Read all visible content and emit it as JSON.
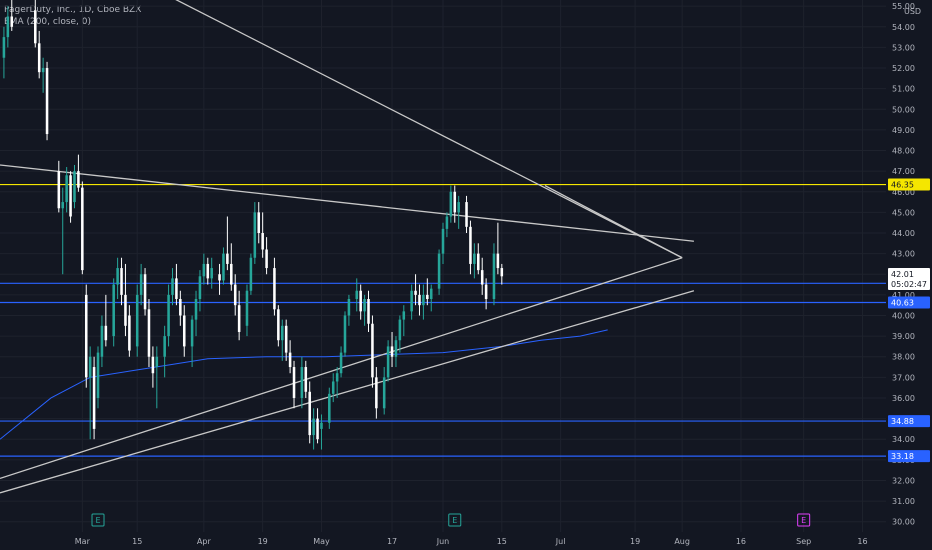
{
  "header": {
    "symbol_line": "PagerDuty, Inc., 1D, Cboe BZX",
    "indicator_line": "EMA (200, close, 0)"
  },
  "colors": {
    "background": "#131722",
    "grid": "#1e222d",
    "bull_candle": "#ffffff",
    "bear_candle": "#ffffff",
    "trendline": "#c8c8c8",
    "horizontal_level_blue": "#2962ff",
    "horizontal_level_yellow": "#f5e600",
    "ema": "#2962ff",
    "current_price_label": "#ffffff",
    "earnings_green": "#26a69a",
    "event_purple": "#e040fb"
  },
  "chart_data": {
    "type": "candlestick",
    "title": "PagerDuty, Inc., 1D, Cboe BZX",
    "currency": "USD",
    "ylim": [
      29.5,
      55.3
    ],
    "y_ticks": [
      30,
      31,
      32,
      33,
      34,
      35,
      36,
      37,
      38,
      39,
      40,
      41,
      42,
      43,
      44,
      45,
      46,
      47,
      48,
      49,
      50,
      51,
      52,
      53,
      54,
      55
    ],
    "y_tick_labels": [
      "30.00",
      "31.00",
      "32.00",
      "33.00",
      "34.00",
      "35.00",
      "36.00",
      "37.00",
      "38.00",
      "39.00",
      "40.00",
      "41.00",
      "42.00",
      "43.00",
      "44.00",
      "45.00",
      "46.00",
      "47.00",
      "48.00",
      "49.00",
      "50.00",
      "51.00",
      "52.00",
      "53.00",
      "54.00",
      "55.00"
    ],
    "x_tick_labels": [
      "Mar",
      "15",
      "Apr",
      "19",
      "May",
      "17",
      "Jun",
      "15",
      "Jul",
      "19",
      "Aug",
      "16",
      "Sep",
      "16"
    ],
    "x_tick_days": [
      8,
      22,
      39,
      54,
      69,
      87,
      100,
      115,
      130,
      149,
      161,
      176,
      192,
      207
    ],
    "x_range_days": [
      -13,
      213
    ],
    "horizontal_levels": [
      {
        "price": 46.35,
        "label": "46.35",
        "color": "yellow"
      },
      {
        "price": 41.56,
        "label": "41.56",
        "color": "blue"
      },
      {
        "price": 40.63,
        "label": "40.63",
        "color": "blue"
      },
      {
        "price": 34.88,
        "label": "34.88",
        "color": "blue"
      },
      {
        "price": 33.18,
        "label": "33.18",
        "color": "blue"
      }
    ],
    "current_price": {
      "price": 42.01,
      "label": "42.01",
      "countdown": "05:02:47"
    },
    "trendlines": [
      {
        "from": {
          "day": 30,
          "price": 55.5
        },
        "to": {
          "day": 161,
          "price": 42.8
        }
      },
      {
        "from": {
          "day": 126,
          "price": 46.3
        },
        "to": {
          "day": 161,
          "price": 42.8
        }
      },
      {
        "from": {
          "day": -13,
          "price": 47.3
        },
        "to": {
          "day": 164,
          "price": 43.6
        }
      },
      {
        "from": {
          "day": -13,
          "price": 32.1
        },
        "to": {
          "day": 161,
          "price": 42.8
        }
      },
      {
        "from": {
          "day": -13,
          "price": 31.4
        },
        "to": {
          "day": 164,
          "price": 41.2
        }
      }
    ],
    "ema": [
      {
        "day": -13,
        "v": 34.0
      },
      {
        "day": 0,
        "v": 36.0
      },
      {
        "day": 10,
        "v": 37.0
      },
      {
        "day": 20,
        "v": 37.3
      },
      {
        "day": 30,
        "v": 37.6
      },
      {
        "day": 40,
        "v": 37.9
      },
      {
        "day": 55,
        "v": 38.0
      },
      {
        "day": 70,
        "v": 38.0
      },
      {
        "day": 85,
        "v": 38.1
      },
      {
        "day": 100,
        "v": 38.2
      },
      {
        "day": 115,
        "v": 38.5
      },
      {
        "day": 125,
        "v": 38.8
      },
      {
        "day": 135,
        "v": 39.0
      },
      {
        "day": 142,
        "v": 39.3
      }
    ],
    "candles": [
      {
        "day": -12,
        "o": 52.5,
        "h": 54.0,
        "l": 51.5,
        "c": 53.5
      },
      {
        "day": -11,
        "o": 53.5,
        "h": 55.0,
        "l": 53.0,
        "c": 54.5
      },
      {
        "day": -10,
        "o": 54.5,
        "h": 55.3,
        "l": 53.8,
        "c": 54.0
      },
      {
        "day": -4,
        "o": 54.8,
        "h": 55.3,
        "l": 53.0,
        "c": 53.2
      },
      {
        "day": -3,
        "o": 53.2,
        "h": 53.8,
        "l": 51.5,
        "c": 51.8
      },
      {
        "day": -2,
        "o": 51.8,
        "h": 52.5,
        "l": 50.8,
        "c": 52.0
      },
      {
        "day": -1,
        "o": 52.0,
        "h": 52.3,
        "l": 48.5,
        "c": 48.8
      },
      {
        "day": 2,
        "o": 47.0,
        "h": 47.5,
        "l": 45.0,
        "c": 45.2
      },
      {
        "day": 3,
        "o": 45.2,
        "h": 46.2,
        "l": 42.0,
        "c": 45.5
      },
      {
        "day": 4,
        "o": 45.5,
        "h": 47.2,
        "l": 45.0,
        "c": 46.8
      },
      {
        "day": 5,
        "o": 46.8,
        "h": 47.0,
        "l": 44.5,
        "c": 44.8
      },
      {
        "day": 6,
        "o": 45.5,
        "h": 47.3,
        "l": 45.2,
        "c": 47.0
      },
      {
        "day": 7,
        "o": 47.0,
        "h": 47.8,
        "l": 46.0,
        "c": 46.2
      },
      {
        "day": 8,
        "o": 46.2,
        "h": 46.5,
        "l": 42.0,
        "c": 42.2
      },
      {
        "day": 9,
        "o": 41.0,
        "h": 41.5,
        "l": 36.5,
        "c": 37.0
      },
      {
        "day": 10,
        "o": 37.0,
        "h": 38.5,
        "l": 34.0,
        "c": 38.0
      },
      {
        "day": 11,
        "o": 37.5,
        "h": 38.0,
        "l": 34.0,
        "c": 34.5
      },
      {
        "day": 12,
        "o": 36.0,
        "h": 38.5,
        "l": 35.5,
        "c": 38.2
      },
      {
        "day": 13,
        "o": 38.0,
        "h": 40.0,
        "l": 37.5,
        "c": 39.5
      },
      {
        "day": 14,
        "o": 39.5,
        "h": 41.0,
        "l": 38.5,
        "c": 38.8
      },
      {
        "day": 16,
        "o": 39.0,
        "h": 41.8,
        "l": 38.5,
        "c": 41.5
      },
      {
        "day": 17,
        "o": 41.5,
        "h": 42.8,
        "l": 40.8,
        "c": 42.3
      },
      {
        "day": 18,
        "o": 42.3,
        "h": 42.8,
        "l": 40.5,
        "c": 41.0
      },
      {
        "day": 19,
        "o": 41.0,
        "h": 42.5,
        "l": 39.0,
        "c": 39.5
      },
      {
        "day": 20,
        "o": 40.0,
        "h": 40.5,
        "l": 38.0,
        "c": 38.3
      },
      {
        "day": 22,
        "o": 38.5,
        "h": 41.5,
        "l": 38.0,
        "c": 41.0
      },
      {
        "day": 23,
        "o": 41.0,
        "h": 42.5,
        "l": 40.5,
        "c": 42.0
      },
      {
        "day": 24,
        "o": 42.0,
        "h": 42.3,
        "l": 40.0,
        "c": 40.3
      },
      {
        "day": 25,
        "o": 40.3,
        "h": 40.8,
        "l": 37.5,
        "c": 38.0
      },
      {
        "day": 26,
        "o": 38.0,
        "h": 38.5,
        "l": 36.5,
        "c": 37.2
      },
      {
        "day": 27,
        "o": 37.5,
        "h": 38.5,
        "l": 35.5,
        "c": 38.0
      },
      {
        "day": 29,
        "o": 38.0,
        "h": 39.5,
        "l": 37.0,
        "c": 39.0
      },
      {
        "day": 30,
        "o": 39.0,
        "h": 41.5,
        "l": 38.5,
        "c": 41.0
      },
      {
        "day": 31,
        "o": 41.0,
        "h": 42.3,
        "l": 40.5,
        "c": 41.8
      },
      {
        "day": 32,
        "o": 41.8,
        "h": 42.5,
        "l": 40.5,
        "c": 40.8
      },
      {
        "day": 33,
        "o": 40.8,
        "h": 41.2,
        "l": 39.5,
        "c": 40.0
      },
      {
        "day": 34,
        "o": 40.0,
        "h": 40.5,
        "l": 38.0,
        "c": 38.5
      },
      {
        "day": 36,
        "o": 38.5,
        "h": 40.0,
        "l": 37.5,
        "c": 39.8
      },
      {
        "day": 37,
        "o": 39.8,
        "h": 41.2,
        "l": 39.0,
        "c": 40.8
      },
      {
        "day": 38,
        "o": 40.8,
        "h": 42.2,
        "l": 40.2,
        "c": 41.9
      },
      {
        "day": 39,
        "o": 41.9,
        "h": 43.0,
        "l": 41.5,
        "c": 42.5
      },
      {
        "day": 40,
        "o": 42.5,
        "h": 42.8,
        "l": 41.5,
        "c": 41.8
      },
      {
        "day": 41,
        "o": 41.8,
        "h": 42.8,
        "l": 41.3,
        "c": 42.3
      },
      {
        "day": 43,
        "o": 42.0,
        "h": 42.5,
        "l": 41.0,
        "c": 41.7
      },
      {
        "day": 44,
        "o": 41.7,
        "h": 43.3,
        "l": 41.5,
        "c": 43.0
      },
      {
        "day": 45,
        "o": 43.0,
        "h": 44.8,
        "l": 42.2,
        "c": 42.5
      },
      {
        "day": 46,
        "o": 42.5,
        "h": 43.5,
        "l": 41.2,
        "c": 41.5
      },
      {
        "day": 47,
        "o": 41.5,
        "h": 42.0,
        "l": 40.0,
        "c": 40.5
      },
      {
        "day": 48,
        "o": 40.5,
        "h": 41.2,
        "l": 38.8,
        "c": 39.2
      },
      {
        "day": 50,
        "o": 39.5,
        "h": 41.5,
        "l": 39.0,
        "c": 41.2
      },
      {
        "day": 51,
        "o": 41.2,
        "h": 43.0,
        "l": 41.0,
        "c": 42.8
      },
      {
        "day": 52,
        "o": 42.8,
        "h": 45.5,
        "l": 42.5,
        "c": 45.0
      },
      {
        "day": 53,
        "o": 45.0,
        "h": 45.5,
        "l": 43.5,
        "c": 44.0
      },
      {
        "day": 54,
        "o": 44.0,
        "h": 45.0,
        "l": 42.8,
        "c": 43.2
      },
      {
        "day": 55,
        "o": 43.2,
        "h": 43.8,
        "l": 42.0,
        "c": 42.3
      },
      {
        "day": 57,
        "o": 42.3,
        "h": 42.8,
        "l": 40.0,
        "c": 40.3
      },
      {
        "day": 58,
        "o": 40.3,
        "h": 40.5,
        "l": 38.5,
        "c": 38.8
      },
      {
        "day": 59,
        "o": 38.8,
        "h": 39.8,
        "l": 37.8,
        "c": 39.5
      },
      {
        "day": 60,
        "o": 39.5,
        "h": 39.8,
        "l": 37.8,
        "c": 38.2
      },
      {
        "day": 61,
        "o": 38.2,
        "h": 38.8,
        "l": 37.2,
        "c": 37.5
      },
      {
        "day": 62,
        "o": 37.5,
        "h": 37.8,
        "l": 35.5,
        "c": 36.0
      },
      {
        "day": 64,
        "o": 36.0,
        "h": 38.0,
        "l": 35.5,
        "c": 37.5
      },
      {
        "day": 65,
        "o": 37.5,
        "h": 37.8,
        "l": 36.0,
        "c": 36.3
      },
      {
        "day": 66,
        "o": 36.3,
        "h": 36.8,
        "l": 33.8,
        "c": 34.2
      },
      {
        "day": 67,
        "o": 34.2,
        "h": 35.5,
        "l": 33.5,
        "c": 35.0
      },
      {
        "day": 68,
        "o": 35.0,
        "h": 35.5,
        "l": 33.8,
        "c": 34.0
      },
      {
        "day": 69,
        "o": 34.5,
        "h": 35.2,
        "l": 33.5,
        "c": 34.8
      },
      {
        "day": 71,
        "o": 34.8,
        "h": 36.5,
        "l": 34.5,
        "c": 36.2
      },
      {
        "day": 72,
        "o": 36.2,
        "h": 37.2,
        "l": 35.8,
        "c": 36.8
      },
      {
        "day": 73,
        "o": 36.8,
        "h": 37.5,
        "l": 36.0,
        "c": 37.2
      },
      {
        "day": 74,
        "o": 37.2,
        "h": 38.5,
        "l": 37.0,
        "c": 38.2
      },
      {
        "day": 75,
        "o": 38.2,
        "h": 40.2,
        "l": 38.0,
        "c": 40.0
      },
      {
        "day": 76,
        "o": 40.0,
        "h": 41.0,
        "l": 39.5,
        "c": 40.8
      },
      {
        "day": 78,
        "o": 40.8,
        "h": 41.8,
        "l": 40.2,
        "c": 41.2
      },
      {
        "day": 79,
        "o": 41.2,
        "h": 41.5,
        "l": 39.8,
        "c": 40.2
      },
      {
        "day": 80,
        "o": 40.2,
        "h": 41.0,
        "l": 39.5,
        "c": 40.8
      },
      {
        "day": 81,
        "o": 40.8,
        "h": 41.2,
        "l": 39.2,
        "c": 39.6
      },
      {
        "day": 82,
        "o": 39.6,
        "h": 40.0,
        "l": 36.5,
        "c": 37.0
      },
      {
        "day": 83,
        "o": 37.0,
        "h": 37.5,
        "l": 35.0,
        "c": 35.5
      },
      {
        "day": 85,
        "o": 35.5,
        "h": 37.5,
        "l": 35.2,
        "c": 37.0
      },
      {
        "day": 86,
        "o": 37.0,
        "h": 38.8,
        "l": 36.8,
        "c": 38.5
      },
      {
        "day": 87,
        "o": 38.5,
        "h": 39.2,
        "l": 37.5,
        "c": 38.0
      },
      {
        "day": 88,
        "o": 38.0,
        "h": 39.0,
        "l": 37.5,
        "c": 38.8
      },
      {
        "day": 89,
        "o": 38.8,
        "h": 40.0,
        "l": 38.2,
        "c": 39.8
      },
      {
        "day": 90,
        "o": 39.8,
        "h": 40.5,
        "l": 39.0,
        "c": 40.2
      },
      {
        "day": 92,
        "o": 40.2,
        "h": 41.5,
        "l": 39.8,
        "c": 41.2
      },
      {
        "day": 93,
        "o": 41.2,
        "h": 42.0,
        "l": 40.5,
        "c": 41.0
      },
      {
        "day": 94,
        "o": 41.0,
        "h": 41.5,
        "l": 40.0,
        "c": 40.5
      },
      {
        "day": 95,
        "o": 40.5,
        "h": 41.5,
        "l": 39.8,
        "c": 41.0
      },
      {
        "day": 96,
        "o": 41.0,
        "h": 41.8,
        "l": 40.5,
        "c": 40.8
      },
      {
        "day": 97,
        "o": 40.8,
        "h": 41.5,
        "l": 40.2,
        "c": 41.3
      },
      {
        "day": 99,
        "o": 41.3,
        "h": 43.2,
        "l": 41.0,
        "c": 43.0
      },
      {
        "day": 100,
        "o": 43.0,
        "h": 44.5,
        "l": 42.5,
        "c": 44.2
      },
      {
        "day": 101,
        "o": 44.2,
        "h": 45.0,
        "l": 43.8,
        "c": 44.8
      },
      {
        "day": 102,
        "o": 44.8,
        "h": 46.3,
        "l": 44.5,
        "c": 46.0
      },
      {
        "day": 103,
        "o": 46.0,
        "h": 46.3,
        "l": 44.5,
        "c": 45.0
      },
      {
        "day": 104,
        "o": 45.0,
        "h": 45.8,
        "l": 44.2,
        "c": 45.5
      },
      {
        "day": 106,
        "o": 45.5,
        "h": 45.8,
        "l": 44.0,
        "c": 44.3
      },
      {
        "day": 107,
        "o": 44.3,
        "h": 44.6,
        "l": 42.0,
        "c": 42.5
      },
      {
        "day": 108,
        "o": 42.5,
        "h": 43.5,
        "l": 41.8,
        "c": 43.0
      },
      {
        "day": 109,
        "o": 43.0,
        "h": 43.5,
        "l": 42.0,
        "c": 42.2
      },
      {
        "day": 110,
        "o": 42.2,
        "h": 42.8,
        "l": 41.0,
        "c": 41.5
      },
      {
        "day": 111,
        "o": 41.5,
        "h": 41.8,
        "l": 40.3,
        "c": 40.8
      },
      {
        "day": 113,
        "o": 40.8,
        "h": 43.5,
        "l": 40.5,
        "c": 43.0
      },
      {
        "day": 114,
        "o": 43.0,
        "h": 44.5,
        "l": 42.0,
        "c": 42.3
      },
      {
        "day": 115,
        "o": 42.3,
        "h": 42.5,
        "l": 41.5,
        "c": 41.9
      }
    ],
    "events": [
      {
        "day": 12,
        "label": "E",
        "kind": "earnings"
      },
      {
        "day": 103,
        "label": "E",
        "kind": "earnings"
      },
      {
        "day": 192,
        "label": "E",
        "kind": "upcoming"
      }
    ],
    "events_note": "",
    "price_axis_label": "USD"
  }
}
